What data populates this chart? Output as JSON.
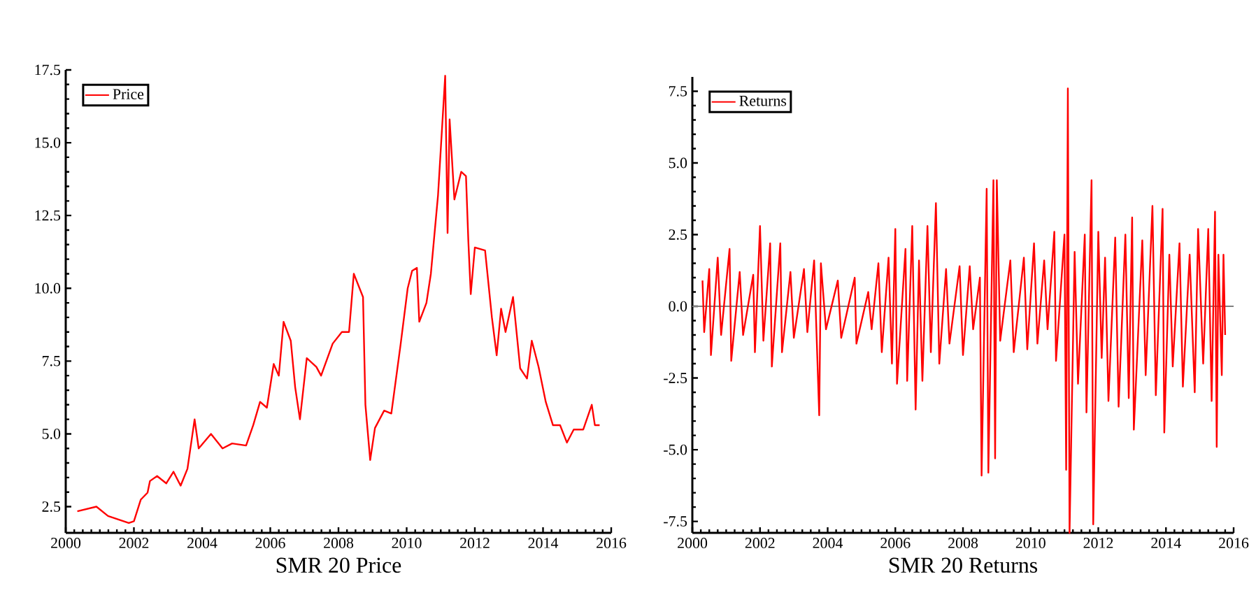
{
  "chart_data": [
    {
      "type": "line",
      "xlabel": "SMR 20 Price",
      "xlim": [
        2000,
        2016
      ],
      "ylim": [
        1.6,
        17.5
      ],
      "xticks": [
        2000,
        2002,
        2004,
        2006,
        2008,
        2010,
        2012,
        2014,
        2016
      ],
      "yticks": [
        {
          "value": 2.5,
          "label": "2.5"
        },
        {
          "value": 5,
          "label": "5.0"
        },
        {
          "value": 7.5,
          "label": "7.5"
        },
        {
          "value": 10,
          "label": "10.0"
        },
        {
          "value": 12.5,
          "label": "12.5"
        },
        {
          "value": 15,
          "label": "15.0"
        },
        {
          "value": 17.5,
          "label": "17.5"
        }
      ],
      "legend": "top left",
      "grid": false,
      "series": [
        {
          "name": "Price",
          "color": "#ff0000",
          "x": [
            2000.34,
            2000.9,
            2001.24,
            2001.85,
            2002.0,
            2002.2,
            2002.4,
            2002.47,
            2002.68,
            2002.95,
            2003.16,
            2003.37,
            2003.57,
            2003.78,
            2003.9,
            2004.26,
            2004.6,
            2004.88,
            2005.29,
            2005.5,
            2005.7,
            2005.9,
            2006.1,
            2006.25,
            2006.39,
            2006.6,
            2006.73,
            2006.87,
            2007.07,
            2007.35,
            2007.49,
            2007.83,
            2008.1,
            2008.31,
            2008.45,
            2008.72,
            2008.79,
            2008.93,
            2009.07,
            2009.34,
            2009.55,
            2009.82,
            2010.03,
            2010.16,
            2010.3,
            2010.37,
            2010.58,
            2010.71,
            2010.92,
            2011.13,
            2011.2,
            2011.26,
            2011.4,
            2011.6,
            2011.74,
            2011.81,
            2011.88,
            2012.0,
            2012.3,
            2012.5,
            2012.64,
            2012.77,
            2012.9,
            2013.12,
            2013.33,
            2013.53,
            2013.67,
            2013.87,
            2014.08,
            2014.29,
            2014.5,
            2014.7,
            2014.9,
            2015.18,
            2015.43,
            2015.52,
            2015.66
          ],
          "values": [
            2.34,
            2.5,
            2.18,
            1.94,
            2.0,
            2.74,
            2.98,
            3.38,
            3.55,
            3.3,
            3.7,
            3.22,
            3.8,
            5.5,
            4.5,
            5.0,
            4.5,
            4.67,
            4.6,
            5.3,
            6.1,
            5.9,
            7.4,
            7.0,
            8.85,
            8.2,
            6.6,
            5.5,
            7.6,
            7.3,
            7.0,
            8.1,
            8.5,
            8.5,
            10.5,
            9.7,
            6.0,
            4.1,
            5.2,
            5.8,
            5.7,
            8.05,
            10.0,
            10.6,
            10.7,
            8.85,
            9.5,
            10.5,
            13.2,
            17.3,
            11.9,
            15.8,
            13.05,
            14.0,
            13.85,
            11.6,
            9.8,
            11.4,
            11.3,
            9.0,
            7.7,
            9.3,
            8.5,
            9.7,
            7.25,
            6.9,
            8.2,
            7.3,
            6.1,
            5.3,
            5.3,
            4.7,
            5.15,
            5.15,
            6.0,
            5.3,
            5.3
          ]
        }
      ]
    },
    {
      "type": "line",
      "xlabel": "SMR 20 Returns",
      "xlim": [
        2000,
        2016
      ],
      "ylim": [
        -7.9,
        8.0
      ],
      "xticks": [
        2000,
        2002,
        2004,
        2006,
        2008,
        2010,
        2012,
        2014,
        2016
      ],
      "yticks": [
        {
          "value": -7.5,
          "label": "-7.5"
        },
        {
          "value": -5,
          "label": "-5.0"
        },
        {
          "value": -2.5,
          "label": "-2.5"
        },
        {
          "value": 0,
          "label": "0.0"
        },
        {
          "value": 2.5,
          "label": "2.5"
        },
        {
          "value": 5,
          "label": "5.0"
        },
        {
          "value": 7.5,
          "label": "7.5"
        }
      ],
      "legend": "top left",
      "grid": false,
      "ref_lines": [
        {
          "axis": "y",
          "value": 0,
          "color": "#808080"
        }
      ],
      "series": [
        {
          "name": "Returns",
          "color": "#ff0000",
          "x": [
            2000.3,
            2000.35,
            2000.5,
            2000.55,
            2000.75,
            2000.85,
            2001.1,
            2001.15,
            2001.4,
            2001.5,
            2001.8,
            2001.85,
            2002.0,
            2002.1,
            2002.3,
            2002.35,
            2002.6,
            2002.65,
            2002.9,
            2003.0,
            2003.3,
            2003.4,
            2003.6,
            2003.75,
            2003.8,
            2003.95,
            2004.3,
            2004.4,
            2004.8,
            2004.85,
            2005.2,
            2005.3,
            2005.5,
            2005.6,
            2005.8,
            2005.9,
            2006.0,
            2006.05,
            2006.3,
            2006.35,
            2006.5,
            2006.6,
            2006.7,
            2006.8,
            2006.95,
            2007.05,
            2007.2,
            2007.3,
            2007.5,
            2007.6,
            2007.9,
            2008.0,
            2008.2,
            2008.3,
            2008.5,
            2008.55,
            2008.7,
            2008.75,
            2008.9,
            2008.95,
            2009.0,
            2009.1,
            2009.4,
            2009.5,
            2009.8,
            2009.9,
            2010.1,
            2010.2,
            2010.4,
            2010.5,
            2010.7,
            2010.75,
            2011.0,
            2011.05,
            2011.1,
            2011.15,
            2011.3,
            2011.4,
            2011.6,
            2011.65,
            2011.8,
            2011.85,
            2012.0,
            2012.1,
            2012.2,
            2012.3,
            2012.5,
            2012.6,
            2012.8,
            2012.9,
            2013.0,
            2013.05,
            2013.3,
            2013.4,
            2013.6,
            2013.7,
            2013.9,
            2013.95,
            2014.1,
            2014.2,
            2014.4,
            2014.5,
            2014.7,
            2014.85,
            2014.95,
            2015.1,
            2015.25,
            2015.35,
            2015.45,
            2015.5,
            2015.55,
            2015.65,
            2015.7,
            2015.75
          ],
          "values": [
            0.9,
            -0.9,
            1.3,
            -1.7,
            1.7,
            -1.0,
            2.0,
            -1.9,
            1.2,
            -1.0,
            1.1,
            -1.6,
            2.8,
            -1.2,
            2.2,
            -2.1,
            2.2,
            -1.6,
            1.2,
            -1.1,
            1.3,
            -0.9,
            1.6,
            -3.8,
            1.5,
            -0.8,
            0.9,
            -1.1,
            1.0,
            -1.3,
            0.5,
            -0.8,
            1.5,
            -1.6,
            1.7,
            -2.0,
            2.7,
            -2.7,
            2.0,
            -2.6,
            2.8,
            -3.6,
            1.6,
            -2.6,
            2.8,
            -1.6,
            3.6,
            -2.0,
            1.3,
            -1.3,
            1.4,
            -1.7,
            1.4,
            -0.8,
            1.0,
            -5.9,
            4.1,
            -5.8,
            4.4,
            -5.3,
            4.4,
            -1.2,
            1.6,
            -1.6,
            1.7,
            -1.5,
            2.2,
            -1.3,
            1.6,
            -0.8,
            2.6,
            -1.9,
            2.5,
            -5.7,
            7.6,
            -7.9,
            1.9,
            -2.7,
            2.5,
            -3.7,
            4.4,
            -7.6,
            2.6,
            -1.8,
            1.7,
            -3.3,
            2.4,
            -3.5,
            2.5,
            -3.2,
            3.1,
            -4.3,
            2.3,
            -2.4,
            3.5,
            -3.1,
            3.4,
            -4.4,
            1.8,
            -2.1,
            2.2,
            -2.8,
            1.8,
            -3.0,
            2.7,
            -2.0,
            2.7,
            -3.3,
            3.3,
            -4.9,
            1.8,
            -2.4,
            1.8,
            -1.0
          ]
        }
      ]
    }
  ]
}
